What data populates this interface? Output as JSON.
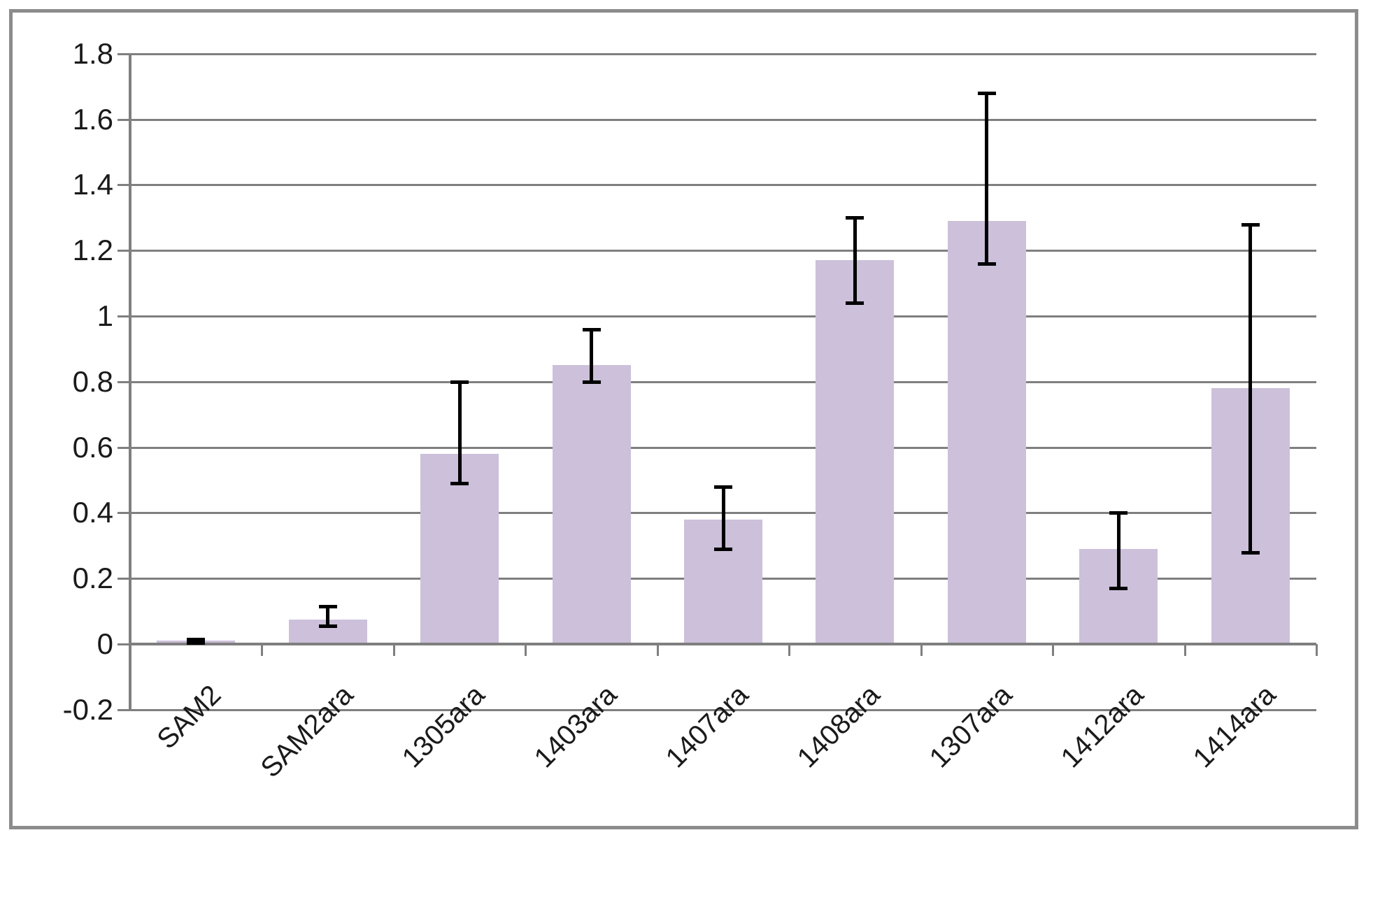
{
  "chart_data": {
    "type": "bar",
    "title": "",
    "xlabel": "",
    "ylabel": "",
    "categories": [
      "SAM2",
      "SAM2ara",
      "1305ara",
      "1403ara",
      "1407ara",
      "1408ara",
      "1307ara",
      "1412ara",
      "1414ara"
    ],
    "values": [
      0.01,
      0.075,
      0.58,
      0.85,
      0.38,
      1.17,
      1.29,
      0.29,
      0.78
    ],
    "error_low": [
      0.005,
      0.055,
      0.49,
      0.8,
      0.29,
      1.04,
      1.16,
      0.17,
      0.28
    ],
    "error_high": [
      0.015,
      0.115,
      0.8,
      0.96,
      0.48,
      1.3,
      1.68,
      0.4,
      1.28
    ],
    "ylim": [
      -0.2,
      1.8
    ],
    "ytick_values": [
      1.8,
      1.6,
      1.4,
      1.2,
      1.0,
      0.8,
      0.6,
      0.4,
      0.2,
      0.0,
      -0.2
    ],
    "ytick_labels": [
      "1.8",
      "1.6",
      "1.4",
      "1.2",
      "1",
      "0.8",
      "0.6",
      "0.4",
      "0.2",
      "0",
      "-0.2"
    ],
    "grid": true,
    "legend": false,
    "x_label_rotation_deg": -45,
    "bar_color": "#CCC0DA",
    "error_bar_color": "#000000",
    "gridline_color": "#7F7F7F",
    "axis_color": "#7F7F7F",
    "frame_border_color": "#8C8C8C",
    "background_color": "#FFFFFF",
    "label_color": "#1A1A1A"
  }
}
